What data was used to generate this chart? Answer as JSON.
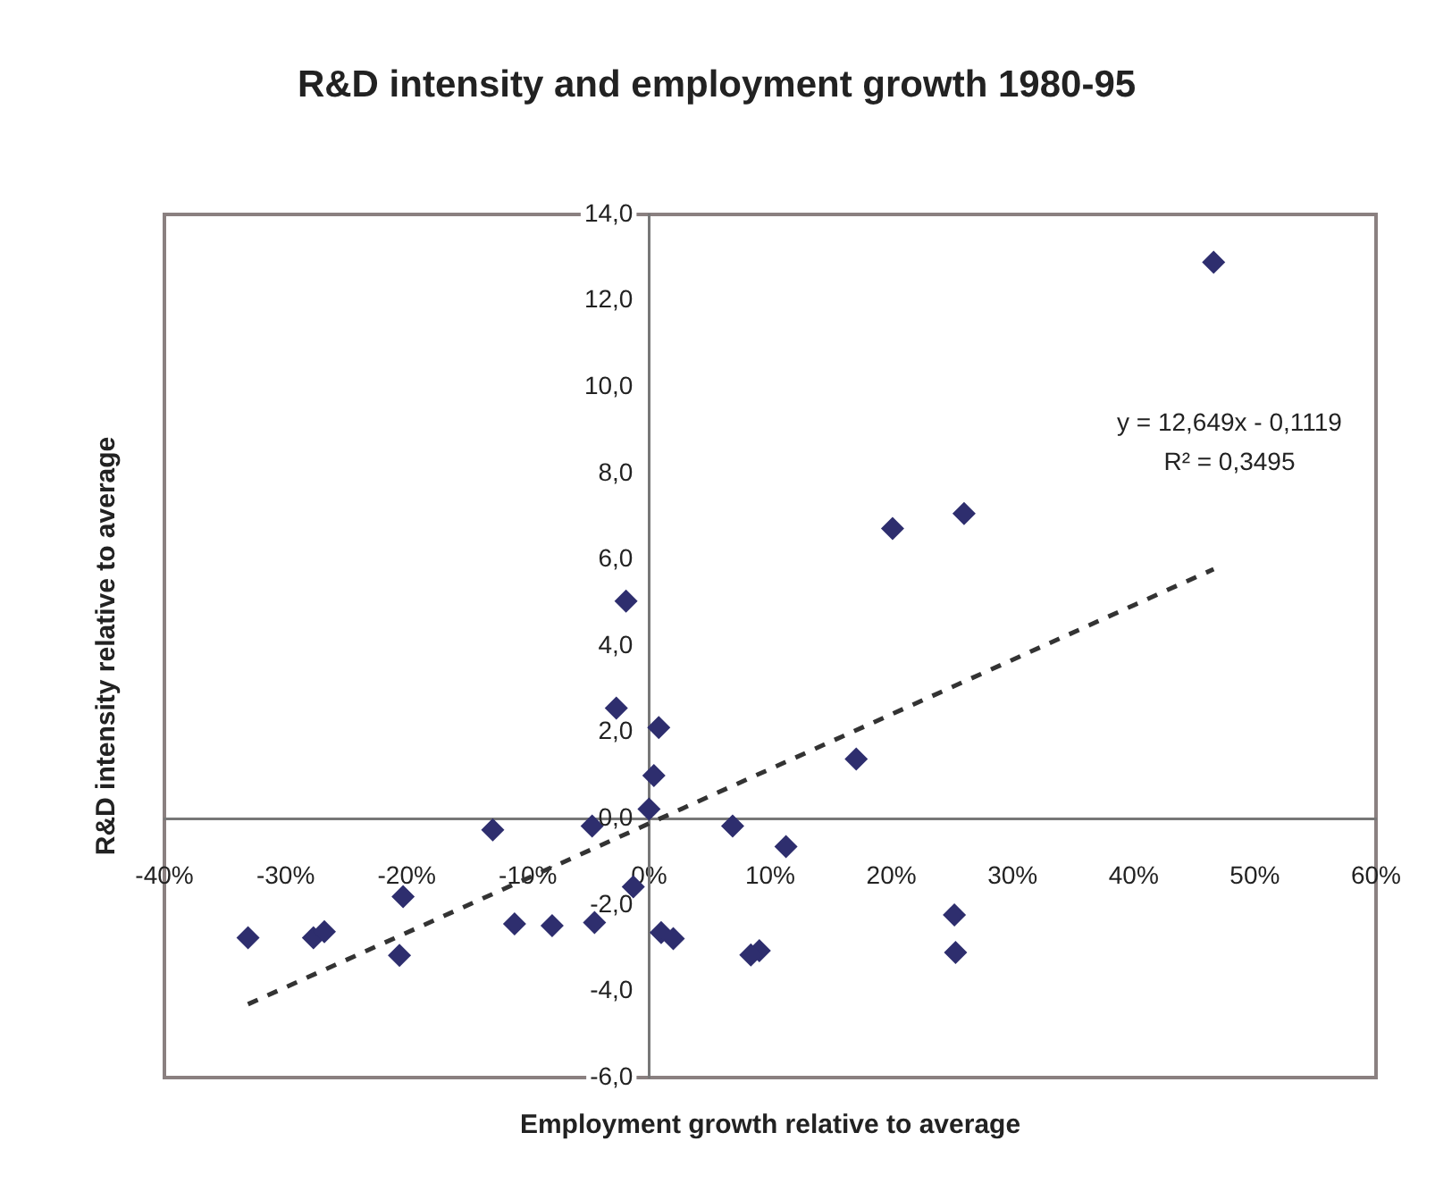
{
  "chart_data": {
    "type": "scatter",
    "title": "R&D intensity and employment growth 1980-95",
    "xlabel": "Employment growth relative to average",
    "ylabel": "R&D intensity relative to average",
    "xlim": [
      -0.4,
      0.6
    ],
    "xticks": [
      {
        "value": -0.4,
        "label": "-40%"
      },
      {
        "value": -0.3,
        "label": "-30%"
      },
      {
        "value": -0.2,
        "label": "-20%"
      },
      {
        "value": -0.1,
        "label": "-10%"
      },
      {
        "value": 0,
        "label": "0%"
      },
      {
        "value": 0.1,
        "label": "10%"
      },
      {
        "value": 0.2,
        "label": "20%"
      },
      {
        "value": 0.3,
        "label": "30%"
      },
      {
        "value": 0.4,
        "label": "40%"
      },
      {
        "value": 0.5,
        "label": "50%"
      },
      {
        "value": 0.6,
        "label": "60%"
      }
    ],
    "ylim": [
      -6,
      14
    ],
    "yticks": [
      {
        "value": -6,
        "label": "-6,0"
      },
      {
        "value": -4,
        "label": "-4,0"
      },
      {
        "value": -2,
        "label": "-2,0"
      },
      {
        "value": 0,
        "label": "0,0"
      },
      {
        "value": 2,
        "label": "2,0"
      },
      {
        "value": 4,
        "label": "4,0"
      },
      {
        "value": 6,
        "label": "6,0"
      },
      {
        "value": 8,
        "label": "8,0"
      },
      {
        "value": 10,
        "label": "10,0"
      },
      {
        "value": 12,
        "label": "12,0"
      },
      {
        "value": 14,
        "label": "14,0"
      }
    ],
    "grid": false,
    "legend": false,
    "marker": "diamond",
    "series": [
      {
        "type": "scatter",
        "color": "#2e2e6e",
        "x": [
          -0.331,
          -0.277,
          -0.268,
          -0.203,
          -0.206,
          -0.129,
          -0.111,
          -0.08,
          -0.045,
          -0.047,
          -0.013,
          -0.019,
          -0.027,
          0.008,
          0.004,
          0.0,
          0.069,
          0.113,
          0.01,
          0.02,
          0.091,
          0.084,
          0.171,
          0.466,
          0.201,
          0.26,
          0.252,
          0.253
        ],
        "values": [
          -2.76,
          -2.76,
          -2.62,
          -1.81,
          -3.17,
          -0.26,
          -2.44,
          -2.48,
          -2.41,
          -0.17,
          -1.58,
          5.04,
          2.56,
          2.11,
          1.0,
          0.22,
          -0.17,
          -0.65,
          -2.64,
          -2.78,
          -3.06,
          -3.16,
          1.38,
          12.89,
          6.72,
          7.07,
          -2.23,
          -3.1
        ]
      },
      {
        "type": "line",
        "color": "#333333",
        "line_style": "dashed",
        "marker": "none",
        "x": [
          -0.331,
          0.466
        ],
        "values": [
          -4.3,
          5.78
        ]
      }
    ],
    "annotations": [
      "y = 12,649x - 0,1119",
      "R² = 0,3495"
    ]
  }
}
